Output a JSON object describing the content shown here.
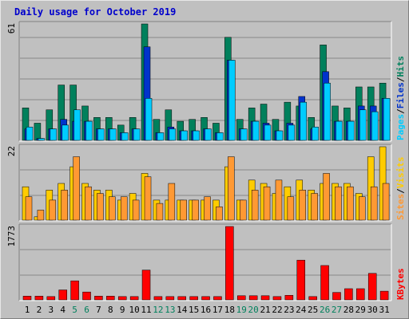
{
  "chart_data": {
    "type": "bar",
    "title": "Daily usage for October 2019",
    "days": [
      "1",
      "2",
      "3",
      "4",
      "5",
      "6",
      "7",
      "8",
      "9",
      "10",
      "11",
      "12",
      "13",
      "14",
      "15",
      "16",
      "17",
      "18",
      "19",
      "20",
      "21",
      "22",
      "23",
      "24",
      "25",
      "26",
      "27",
      "28",
      "29",
      "30",
      "31"
    ],
    "weekend_days": [
      "5",
      "6",
      "12",
      "13",
      "19",
      "20",
      "26",
      "27"
    ],
    "colors": {
      "title": "#0000cc",
      "hits": "#00805c",
      "files": "#0033cc",
      "pages": "#00ccff",
      "visits": "#ffcc00",
      "sites": "#ff9933",
      "kbytes": "#ff0000",
      "weekday_label": "#000000",
      "weekend_label": "#00805c",
      "grid": "#888888"
    },
    "panels": [
      {
        "id": "hits",
        "max_label": "61",
        "ylim": [
          0,
          61
        ],
        "legend": [
          {
            "text": "Pages",
            "color": "#00ccff"
          },
          {
            "text": "/",
            "color": "#000000"
          },
          {
            "text": "Files",
            "color": "#0033cc"
          },
          {
            "text": "/",
            "color": "#000000"
          },
          {
            "text": "Hits",
            "color": "#00805c"
          }
        ],
        "series": [
          {
            "name": "Hits",
            "values": [
              17,
              9,
              16,
              29,
              29,
              18,
              12,
              12,
              8,
              12,
              61,
              11,
              16,
              10,
              11,
              12,
              9,
              54,
              11,
              17,
              19,
              11,
              20,
              18,
              12,
              50,
              18,
              17,
              28,
              28,
              30
            ]
          },
          {
            "name": "Files",
            "values": [
              6,
              1,
              6,
              11,
              10,
              10,
              6,
              6,
              4,
              6,
              49,
              4,
              7,
              5,
              5,
              6,
              4,
              42,
              6,
              10,
              9,
              5,
              9,
              23,
              6,
              36,
              10,
              10,
              18,
              18,
              22
            ]
          },
          {
            "name": "Pages",
            "values": [
              7,
              1,
              6,
              8,
              16,
              10,
              6,
              6,
              4,
              6,
              22,
              4,
              6,
              5,
              5,
              6,
              4,
              42,
              6,
              10,
              8,
              5,
              8,
              20,
              7,
              30,
              10,
              10,
              16,
              15,
              22
            ]
          }
        ]
      },
      {
        "id": "visits",
        "max_label": "22",
        "ylim": [
          0,
          22
        ],
        "legend": [
          {
            "text": "Sites",
            "color": "#ff9933"
          },
          {
            "text": "/",
            "color": "#000000"
          },
          {
            "text": "Visits",
            "color": "#ffcc00"
          }
        ],
        "series": [
          {
            "name": "Visits",
            "values": [
              10,
              1,
              9,
              11,
              16,
              11,
              9,
              9,
              6,
              8,
              14,
              6,
              6,
              6,
              6,
              6,
              6,
              16,
              6,
              12,
              11,
              8,
              10,
              12,
              9,
              11,
              11,
              11,
              8,
              19,
              22
            ]
          },
          {
            "name": "Sites",
            "values": [
              7,
              3,
              6,
              9,
              19,
              10,
              8,
              7,
              7,
              6,
              13,
              5,
              11,
              6,
              6,
              7,
              4,
              19,
              6,
              9,
              10,
              12,
              7,
              9,
              8,
              14,
              10,
              10,
              7,
              10,
              11
            ]
          }
        ]
      },
      {
        "id": "kbytes",
        "max_label": "1773",
        "ylim": [
          0,
          1773
        ],
        "legend": [
          {
            "text": "KBytes",
            "color": "#ff0000"
          }
        ],
        "series": [
          {
            "name": "KBytes",
            "values": [
              90,
              90,
              80,
              240,
              460,
              190,
              90,
              90,
              80,
              80,
              720,
              80,
              80,
              80,
              80,
              80,
              80,
              1773,
              100,
              100,
              100,
              80,
              110,
              960,
              80,
              830,
              180,
              270,
              270,
              640,
              210
            ]
          }
        ]
      }
    ]
  }
}
